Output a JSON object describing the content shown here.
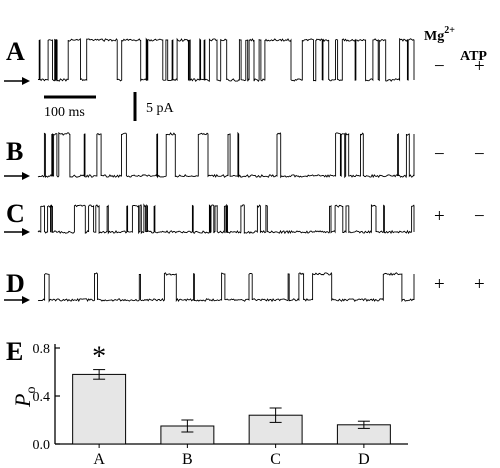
{
  "header": {
    "mg_label": "Mg",
    "mg_superscript": "2+",
    "atp_label": "ATP"
  },
  "traces": [
    {
      "letter": "A",
      "mg": "−",
      "atp": "+",
      "po": 0.58
    },
    {
      "letter": "B",
      "mg": "−",
      "atp": "−",
      "po": 0.15
    },
    {
      "letter": "C",
      "mg": "+",
      "atp": "−",
      "po": 0.24
    },
    {
      "letter": "D",
      "mg": "+",
      "atp": "+",
      "po": 0.16
    }
  ],
  "scale_bars": {
    "time_label": "100 ms",
    "current_label": "5 pA"
  },
  "chart_data": {
    "type": "bar",
    "panel_letter": "E",
    "ylabel": "P",
    "ylabel_sub": "o",
    "categories": [
      "A",
      "B",
      "C",
      "D"
    ],
    "values": [
      0.58,
      0.15,
      0.24,
      0.16
    ],
    "errors": [
      0.04,
      0.05,
      0.06,
      0.03
    ],
    "ylim": [
      0,
      0.8
    ],
    "yticks": [
      "0.0",
      "0.4",
      "0.8"
    ],
    "annotations": [
      {
        "category": "A",
        "text": "*"
      }
    ],
    "bar_color": "#e6e6e6",
    "grid": false
  }
}
